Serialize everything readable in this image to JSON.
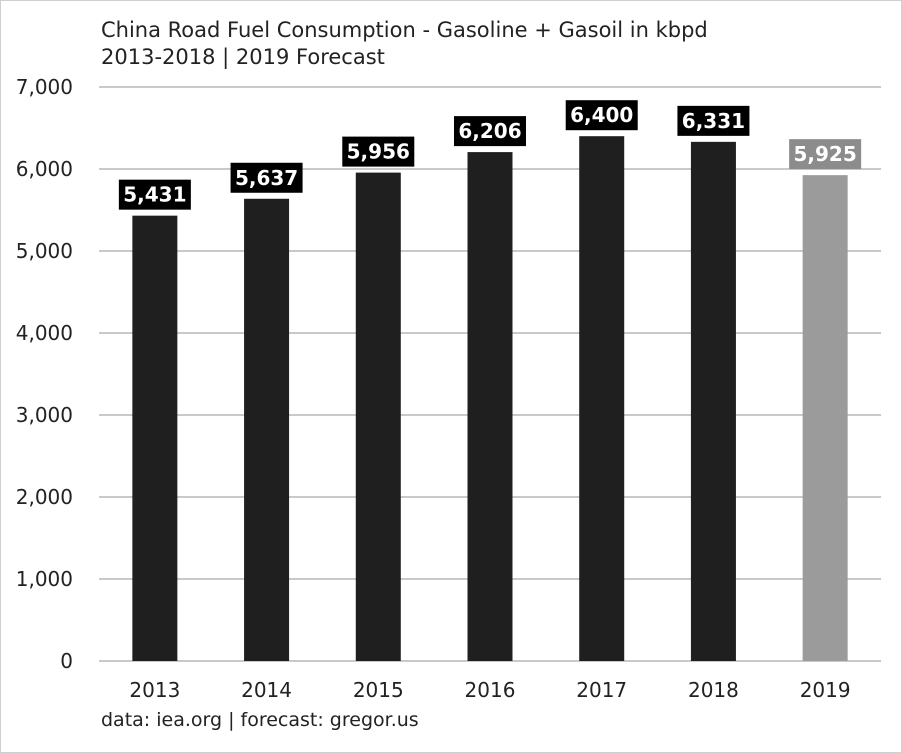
{
  "chart_data": {
    "type": "bar",
    "title": "China Road Fuel Consumption - Gasoline + Gasoil in kbpd",
    "subtitle": "2013-2018 | 2019 Forecast",
    "xlabel": "",
    "ylabel": "",
    "categories": [
      "2013",
      "2014",
      "2015",
      "2016",
      "2017",
      "2018",
      "2019"
    ],
    "values": [
      5431,
      5637,
      5956,
      6206,
      6400,
      6331,
      5925
    ],
    "data_labels": [
      "5,431",
      "5,637",
      "5,956",
      "6,206",
      "6,400",
      "6,331",
      "5,925"
    ],
    "forecast": [
      false,
      false,
      false,
      false,
      false,
      false,
      true
    ],
    "ylim": [
      0,
      7000
    ],
    "y_ticks": [
      0,
      1000,
      2000,
      3000,
      4000,
      5000,
      6000,
      7000
    ],
    "y_tick_labels": [
      "0",
      "1,000",
      "2,000",
      "3,000",
      "4,000",
      "5,000",
      "6,000",
      "7,000"
    ],
    "grid": true,
    "legend": "none",
    "colors": {
      "actual_bar": "#1f1f1f",
      "forecast_bar": "#9b9b9b",
      "actual_label_bg": "#000000",
      "forecast_label_bg": "#8c8c8c",
      "gridline": "#a9a9a9"
    },
    "source": "data: iea.org | forecast: gregor.us"
  }
}
